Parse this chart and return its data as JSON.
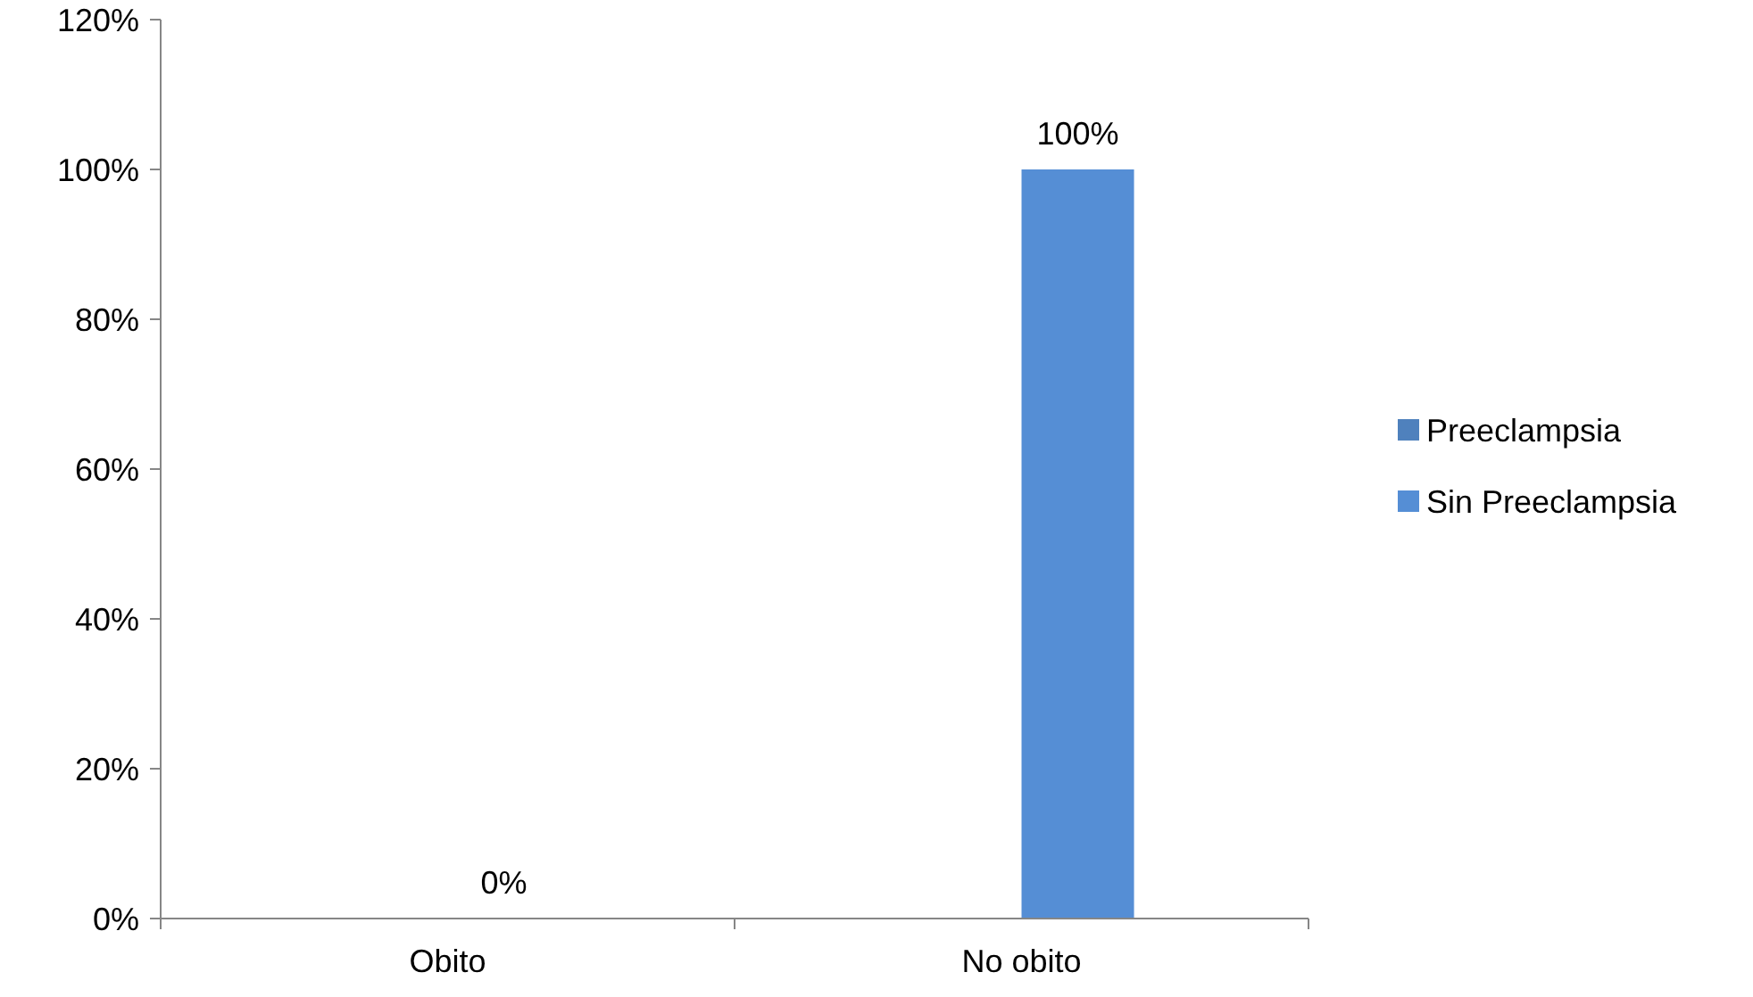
{
  "chart_data": {
    "type": "bar",
    "categories": [
      "Obito",
      "No obito"
    ],
    "series": [
      {
        "name": "Preeclampsia",
        "color": "#4f81bd",
        "values": [
          null,
          null
        ]
      },
      {
        "name": "Sin Preeclampsia",
        "color": "#558ed5",
        "values": [
          0,
          100
        ]
      }
    ],
    "ylim": [
      0,
      120
    ],
    "yticks": [
      {
        "value": 0,
        "label": "0%"
      },
      {
        "value": 20,
        "label": "20%"
      },
      {
        "value": 40,
        "label": "40%"
      },
      {
        "value": 60,
        "label": "60%"
      },
      {
        "value": 80,
        "label": "80%"
      },
      {
        "value": 100,
        "label": "100%"
      },
      {
        "value": 120,
        "label": "120%"
      }
    ],
    "value_labels": [
      null,
      [
        "0%",
        "100%"
      ]
    ],
    "grid": false,
    "legend": "right"
  }
}
